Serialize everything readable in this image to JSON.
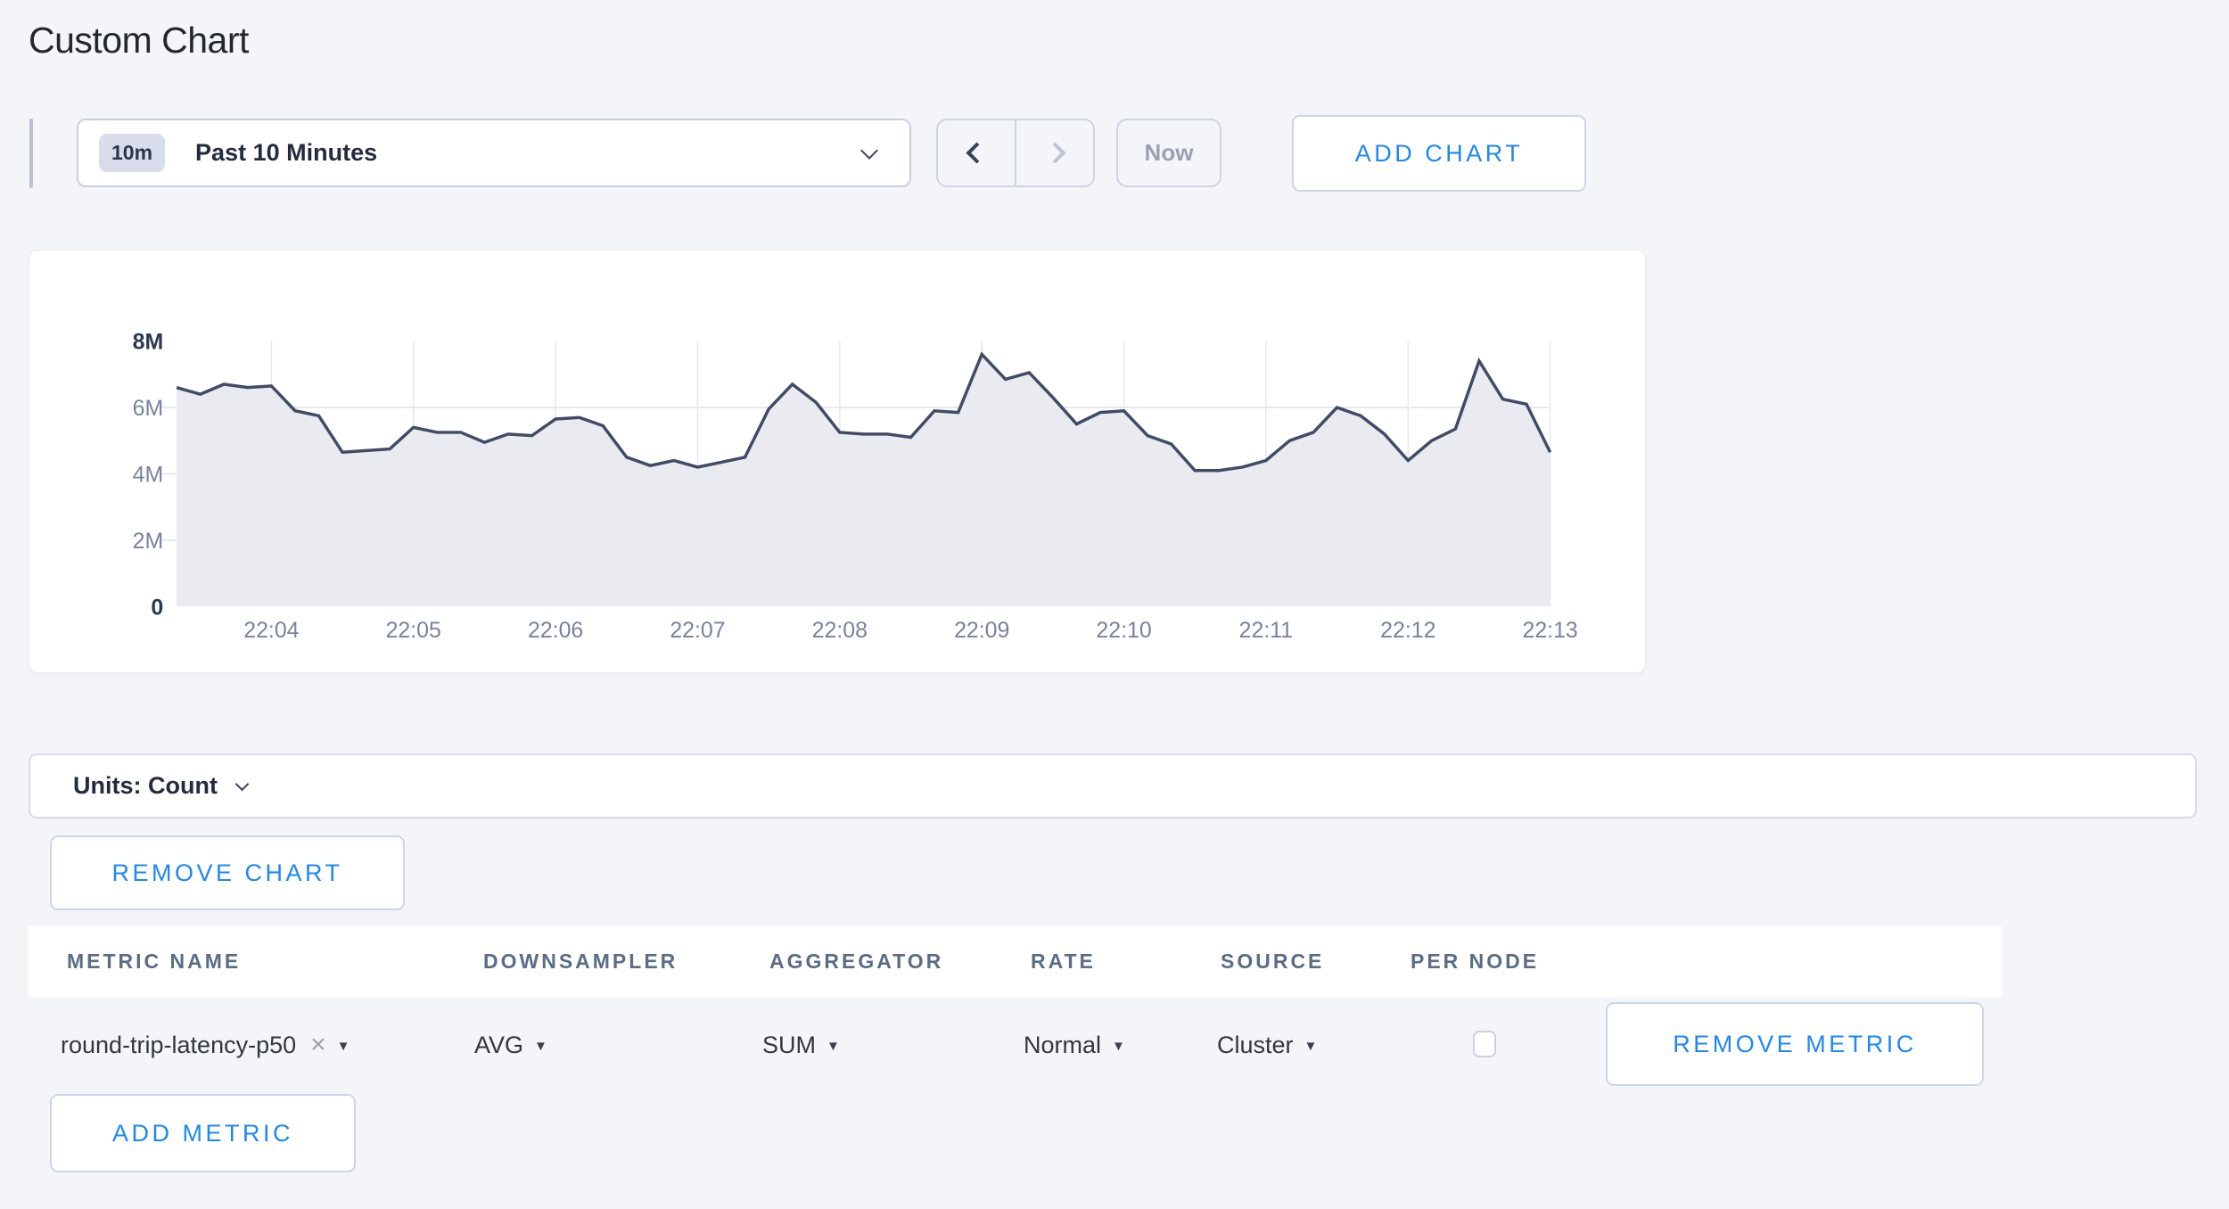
{
  "page": {
    "title": "Custom Chart"
  },
  "toolbar": {
    "range_badge": "10m",
    "range_label": "Past 10 Minutes",
    "now_label": "Now",
    "add_chart_label": "ADD CHART"
  },
  "chart_data": {
    "type": "area",
    "title": "",
    "xlabel": "",
    "ylabel": "",
    "grid": true,
    "legend": "none",
    "sample_interval_seconds": 10,
    "duration_seconds": 580,
    "y_axis": {
      "max_millions": 8,
      "ticks": [
        {
          "label": "8M",
          "value": 8,
          "bold": true,
          "grid": false
        },
        {
          "label": "6M",
          "value": 6,
          "bold": false,
          "grid": true
        },
        {
          "label": "4M",
          "value": 4,
          "bold": false,
          "grid": true
        },
        {
          "label": "2M",
          "value": 2,
          "bold": false,
          "grid": true
        },
        {
          "label": "0",
          "value": 0,
          "bold": true,
          "grid": false
        }
      ]
    },
    "x_axis": {
      "ticks": [
        {
          "label": "22:04",
          "seconds": 40
        },
        {
          "label": "22:05",
          "seconds": 100
        },
        {
          "label": "22:06",
          "seconds": 160
        },
        {
          "label": "22:07",
          "seconds": 220
        },
        {
          "label": "22:08",
          "seconds": 280
        },
        {
          "label": "22:09",
          "seconds": 340
        },
        {
          "label": "22:10",
          "seconds": 400
        },
        {
          "label": "22:11",
          "seconds": 460
        },
        {
          "label": "22:12",
          "seconds": 520
        },
        {
          "label": "22:13",
          "seconds": 580
        }
      ]
    },
    "series": [
      {
        "name": "round-trip-latency-p50",
        "unit": "Count",
        "values_millions": [
          6.6,
          6.4,
          6.7,
          6.6,
          6.65,
          5.9,
          5.75,
          4.65,
          4.7,
          4.75,
          5.4,
          5.25,
          5.25,
          4.95,
          5.2,
          5.15,
          5.65,
          5.7,
          5.45,
          4.5,
          4.25,
          4.4,
          4.2,
          4.35,
          4.5,
          5.95,
          6.7,
          6.15,
          5.25,
          5.2,
          5.2,
          5.1,
          5.9,
          5.85,
          7.6,
          6.85,
          7.05,
          6.3,
          5.5,
          5.85,
          5.9,
          5.15,
          4.9,
          4.1,
          4.1,
          4.2,
          4.4,
          5.0,
          5.25,
          6.0,
          5.75,
          5.2,
          4.4,
          5.0,
          5.35,
          7.4,
          6.25,
          6.1,
          4.65
        ]
      }
    ]
  },
  "units": {
    "label": "Units: Count"
  },
  "chart_actions": {
    "remove_chart_label": "REMOVE CHART"
  },
  "metrics_table": {
    "headers": [
      "METRIC NAME",
      "DOWNSAMPLER",
      "AGGREGATOR",
      "RATE",
      "SOURCE",
      "PER NODE"
    ],
    "rows": [
      {
        "metric_name": "round-trip-latency-p50",
        "downsampler": "AVG",
        "aggregator": "SUM",
        "rate": "Normal",
        "source": "Cluster",
        "per_node_checked": false,
        "remove_label": "REMOVE METRIC"
      }
    ],
    "add_metric_label": "ADD METRIC"
  },
  "icons": {
    "clear": "×",
    "caret_down": "▼"
  },
  "colors": {
    "accent": "#1e88f2",
    "line": "#404c66",
    "fill": "#e9ebf1",
    "page_bg": "#f4f5f9",
    "navy": "#2c3547",
    "muted": "#77839c"
  }
}
